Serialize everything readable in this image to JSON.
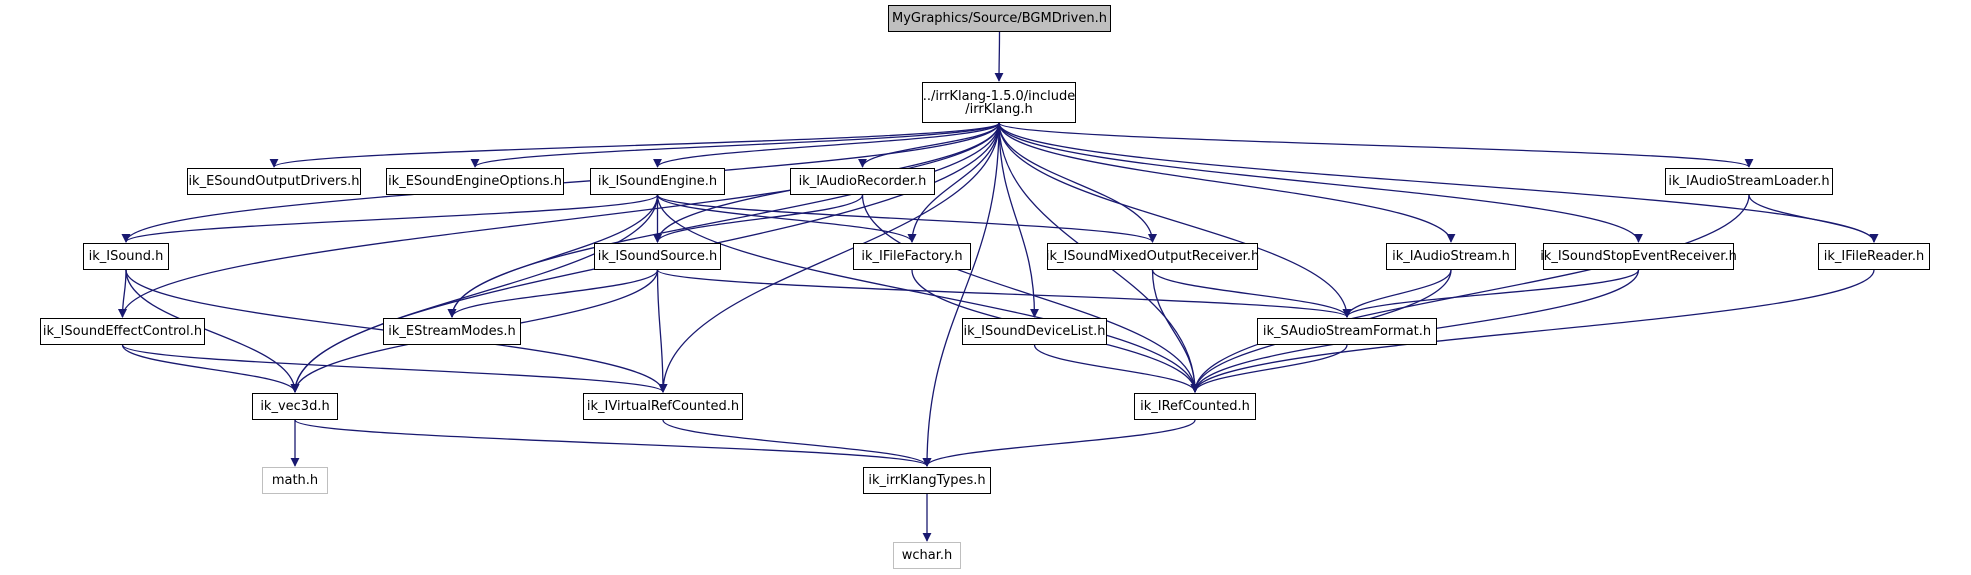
{
  "graph": {
    "nodes": [
      {
        "id": "root",
        "label": "MyGraphics/Source/BGMDriven.h",
        "kind": "root"
      },
      {
        "id": "irrklang",
        "label": "../irrKlang-1.5.0/include\n/irrKlang.h",
        "kind": "file"
      },
      {
        "id": "soundoutputdrivers",
        "label": "ik_ESoundOutputDrivers.h",
        "kind": "file"
      },
      {
        "id": "soundengineoptions",
        "label": "ik_ESoundEngineOptions.h",
        "kind": "file"
      },
      {
        "id": "isoundengine",
        "label": "ik_ISoundEngine.h",
        "kind": "file"
      },
      {
        "id": "iaudiorecorder",
        "label": "ik_IAudioRecorder.h",
        "kind": "file"
      },
      {
        "id": "iaudiostreamloader",
        "label": "ik_IAudioStreamLoader.h",
        "kind": "file"
      },
      {
        "id": "isound",
        "label": "ik_ISound.h",
        "kind": "file"
      },
      {
        "id": "isoundsource",
        "label": "ik_ISoundSource.h",
        "kind": "file"
      },
      {
        "id": "ifilefactory",
        "label": "ik_IFileFactory.h",
        "kind": "file"
      },
      {
        "id": "isoundmixed",
        "label": "ik_ISoundMixedOutputReceiver.h",
        "kind": "file"
      },
      {
        "id": "iaudiostream",
        "label": "ik_IAudioStream.h",
        "kind": "file"
      },
      {
        "id": "isoundstop",
        "label": "ik_ISoundStopEventReceiver.h",
        "kind": "file"
      },
      {
        "id": "ifilereader",
        "label": "ik_IFileReader.h",
        "kind": "file"
      },
      {
        "id": "isoundeffect",
        "label": "ik_ISoundEffectControl.h",
        "kind": "file"
      },
      {
        "id": "estreammodes",
        "label": "ik_EStreamModes.h",
        "kind": "file"
      },
      {
        "id": "isounddevicelist",
        "label": "ik_ISoundDeviceList.h",
        "kind": "file"
      },
      {
        "id": "saudiostreamformat",
        "label": "ik_SAudioStreamFormat.h",
        "kind": "file"
      },
      {
        "id": "vec3d",
        "label": "ik_vec3d.h",
        "kind": "file"
      },
      {
        "id": "ivirtualref",
        "label": "ik_IVirtualRefCounted.h",
        "kind": "file"
      },
      {
        "id": "irefcounted",
        "label": "ik_IRefCounted.h",
        "kind": "file"
      },
      {
        "id": "mathh",
        "label": "math.h",
        "kind": "external"
      },
      {
        "id": "irrklangtypes",
        "label": "ik_irrKlangTypes.h",
        "kind": "file"
      },
      {
        "id": "wcharh",
        "label": "wchar.h",
        "kind": "external"
      }
    ],
    "edges": [
      [
        "root",
        "irrklang"
      ],
      [
        "irrklang",
        "soundoutputdrivers"
      ],
      [
        "irrklang",
        "soundengineoptions"
      ],
      [
        "irrklang",
        "isoundengine"
      ],
      [
        "irrklang",
        "iaudiorecorder"
      ],
      [
        "irrklang",
        "iaudiostreamloader"
      ],
      [
        "irrklang",
        "isound"
      ],
      [
        "irrklang",
        "isoundsource"
      ],
      [
        "irrklang",
        "ifilefactory"
      ],
      [
        "irrklang",
        "isoundmixed"
      ],
      [
        "irrklang",
        "iaudiostream"
      ],
      [
        "irrklang",
        "isoundstop"
      ],
      [
        "irrklang",
        "ifilereader"
      ],
      [
        "irrklang",
        "isoundeffect"
      ],
      [
        "irrklang",
        "estreammodes"
      ],
      [
        "irrklang",
        "isounddevicelist"
      ],
      [
        "irrklang",
        "saudiostreamformat"
      ],
      [
        "irrklang",
        "vec3d"
      ],
      [
        "irrklang",
        "ivirtualref"
      ],
      [
        "irrklang",
        "irefcounted"
      ],
      [
        "irrklang",
        "irrklangtypes"
      ],
      [
        "isoundengine",
        "isound"
      ],
      [
        "isoundengine",
        "isoundsource"
      ],
      [
        "isoundengine",
        "ifilefactory"
      ],
      [
        "isoundengine",
        "isoundmixed"
      ],
      [
        "isoundengine",
        "estreammodes"
      ],
      [
        "isoundengine",
        "vec3d"
      ],
      [
        "isoundengine",
        "irefcounted"
      ],
      [
        "iaudiorecorder",
        "isoundsource"
      ],
      [
        "iaudiorecorder",
        "irefcounted"
      ],
      [
        "iaudiostreamloader",
        "ifilereader"
      ],
      [
        "iaudiostreamloader",
        "irefcounted"
      ],
      [
        "isound",
        "isoundeffect"
      ],
      [
        "isound",
        "vec3d"
      ],
      [
        "isound",
        "ivirtualref"
      ],
      [
        "isoundsource",
        "estreammodes"
      ],
      [
        "isoundsource",
        "saudiostreamformat"
      ],
      [
        "isoundsource",
        "vec3d"
      ],
      [
        "isoundsource",
        "ivirtualref"
      ],
      [
        "ifilefactory",
        "irefcounted"
      ],
      [
        "isoundmixed",
        "saudiostreamformat"
      ],
      [
        "isoundmixed",
        "irefcounted"
      ],
      [
        "iaudiostream",
        "saudiostreamformat"
      ],
      [
        "iaudiostream",
        "irefcounted"
      ],
      [
        "isoundstop",
        "saudiostreamformat"
      ],
      [
        "isoundstop",
        "irefcounted"
      ],
      [
        "ifilereader",
        "irefcounted"
      ],
      [
        "isoundeffect",
        "vec3d"
      ],
      [
        "isoundeffect",
        "ivirtualref"
      ],
      [
        "isounddevicelist",
        "irefcounted"
      ],
      [
        "saudiostreamformat",
        "irefcounted"
      ],
      [
        "vec3d",
        "mathh"
      ],
      [
        "vec3d",
        "irrklangtypes"
      ],
      [
        "ivirtualref",
        "irrklangtypes"
      ],
      [
        "irefcounted",
        "irrklangtypes"
      ],
      [
        "irrklangtypes",
        "wcharh"
      ]
    ]
  },
  "colors": {
    "edge": "#191970",
    "root_fill": "#bfbfbf",
    "external_border": "#bfbfbf"
  }
}
